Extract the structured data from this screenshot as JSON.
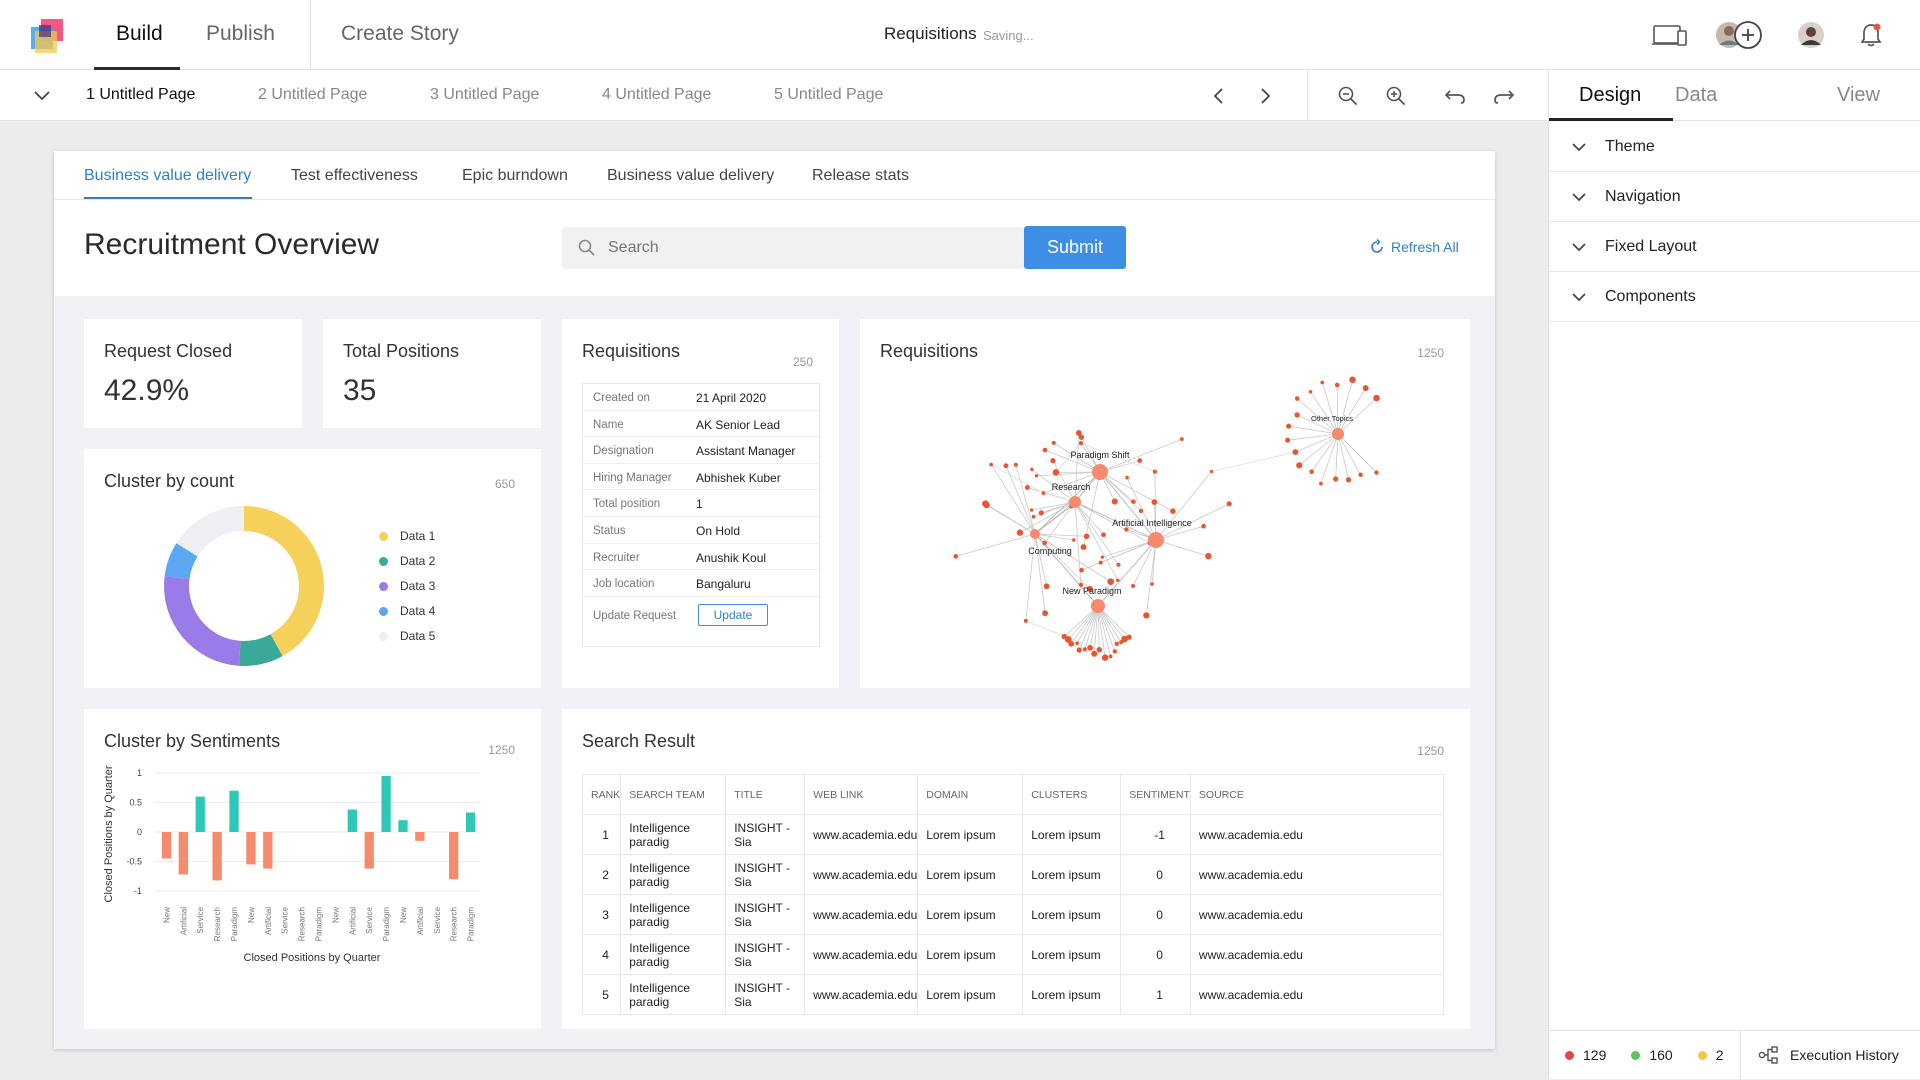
{
  "topbar": {
    "tabs": [
      "Build",
      "Publish",
      "Create Story"
    ],
    "active_tab": "Build",
    "doc_title": "Requisitions",
    "saving_status": "Saving..."
  },
  "pagebar": {
    "pages": [
      "1 Untitled Page",
      "2 Untitled Page",
      "3 Untitled Page",
      "4 Untitled Page",
      "5 Untitled Page"
    ],
    "active_page": "1 Untitled Page"
  },
  "right_panel": {
    "tabs": [
      "Design",
      "Data",
      "View"
    ],
    "active_tab": "Design",
    "sections": [
      "Theme",
      "Navigation",
      "Fixed Layout",
      "Components"
    ],
    "status": {
      "red": "129",
      "green": "160",
      "yellow": "2",
      "execution_history": "Execution History"
    }
  },
  "dashboard": {
    "tabs": [
      "Business value delivery",
      "Test effectiveness",
      "Epic burndown",
      "Business value delivery",
      "Release stats"
    ],
    "title": "Recruitment Overview",
    "search_placeholder": "Search",
    "submit_label": "Submit",
    "refresh_label": "Refresh All"
  },
  "kpis": [
    {
      "label": "Request Closed",
      "value": "42.9%"
    },
    {
      "label": "Total Positions",
      "value": "35"
    }
  ],
  "requisition_detail": {
    "title": "Requisitions",
    "count": "250",
    "rows": [
      {
        "k": "Created on",
        "v": "21 April 2020"
      },
      {
        "k": "Name",
        "v": "AK Senior Lead"
      },
      {
        "k": "Designation",
        "v": "Assistant Manager"
      },
      {
        "k": "Hiring Manager",
        "v": "Abhishek Kuber"
      },
      {
        "k": "Total position",
        "v": "1"
      },
      {
        "k": "Status",
        "v": "On Hold"
      },
      {
        "k": "Recruiter",
        "v": "Anushik Koul"
      },
      {
        "k": "Job location",
        "v": "Bangaluru"
      }
    ],
    "update_label": "Update Request",
    "update_button": "Update"
  },
  "network": {
    "title": "Requisitions",
    "count": "1250",
    "labels": [
      "Paradigm Shift",
      "Research",
      "Artificial Intelligence",
      "Computing",
      "New Paradigm",
      "Other Topics"
    ]
  },
  "donut": {
    "title": "Cluster by count",
    "count": "650"
  },
  "sentiment": {
    "title": "Cluster by Sentiments",
    "count": "1250"
  },
  "search_result": {
    "title": "Search Result",
    "count": "1250",
    "columns": [
      "RANK",
      "SEARCH TEAM",
      "TITLE",
      "WEB LINK",
      "DOMAIN",
      "CLUSTERS",
      "SENTIMENT",
      "SOURCE"
    ],
    "rows": [
      [
        "1",
        "Intelligence paradig",
        "INSIGHT - Sia",
        "www.academia.edu",
        "Lorem ipsum",
        "Lorem ipsum",
        "-1",
        "www.academia.edu"
      ],
      [
        "2",
        "Intelligence paradig",
        "INSIGHT - Sia",
        "www.academia.edu",
        "Lorem ipsum",
        "Lorem ipsum",
        "0",
        "www.academia.edu"
      ],
      [
        "3",
        "Intelligence paradig",
        "INSIGHT - Sia",
        "www.academia.edu",
        "Lorem ipsum",
        "Lorem ipsum",
        "0",
        "www.academia.edu"
      ],
      [
        "4",
        "Intelligence paradig",
        "INSIGHT - Sia",
        "www.academia.edu",
        "Lorem ipsum",
        "Lorem ipsum",
        "0",
        "www.academia.edu"
      ],
      [
        "5",
        "Intelligence paradig",
        "INSIGHT - Sia",
        "www.academia.edu",
        "Lorem ipsum",
        "Lorem ipsum",
        "1",
        "www.academia.edu"
      ]
    ]
  },
  "chart_data": [
    {
      "type": "pie",
      "title": "Cluster by count",
      "categories": [
        "Data 1",
        "Data 2",
        "Data 3",
        "Data 4",
        "Data 5"
      ],
      "values": [
        42,
        9,
        26,
        7,
        16
      ],
      "colors": [
        "#f5d15c",
        "#3aa99a",
        "#9b7be8",
        "#5aa7f2",
        "#eeeff2"
      ],
      "legend": "right"
    },
    {
      "type": "bar",
      "title": "Cluster by Sentiments",
      "xlabel": "Closed Positions by Quarter",
      "ylabel": "Closed Positions by Quarter",
      "ylim": [
        -1,
        1
      ],
      "yticks": [
        "1",
        "0.5",
        "0",
        "-0.5",
        "-1"
      ],
      "categories": [
        "New",
        "Artificial",
        "Service",
        "Research",
        "Paradigm",
        "New",
        "Artificial",
        "Service",
        "Research",
        "Paradigm",
        "New",
        "Artificial",
        "Service",
        "Paradigm",
        "New",
        "Artificial",
        "Service",
        "Research",
        "Paradigm"
      ],
      "series": [
        {
          "values": [
            0,
            0,
            0.6,
            0,
            0.7,
            0,
            0,
            0,
            0,
            0,
            0,
            0.38,
            0,
            0.95,
            0.2,
            0,
            0,
            0,
            0.33
          ],
          "color": "#2ec8b8"
        },
        {
          "values": [
            -0.45,
            -0.72,
            0,
            -0.82,
            0,
            -0.55,
            -0.62,
            0,
            0,
            0,
            0,
            0,
            -0.62,
            0,
            0,
            -0.15,
            0,
            -0.8,
            0
          ],
          "color": "#f58b6c"
        }
      ]
    }
  ]
}
